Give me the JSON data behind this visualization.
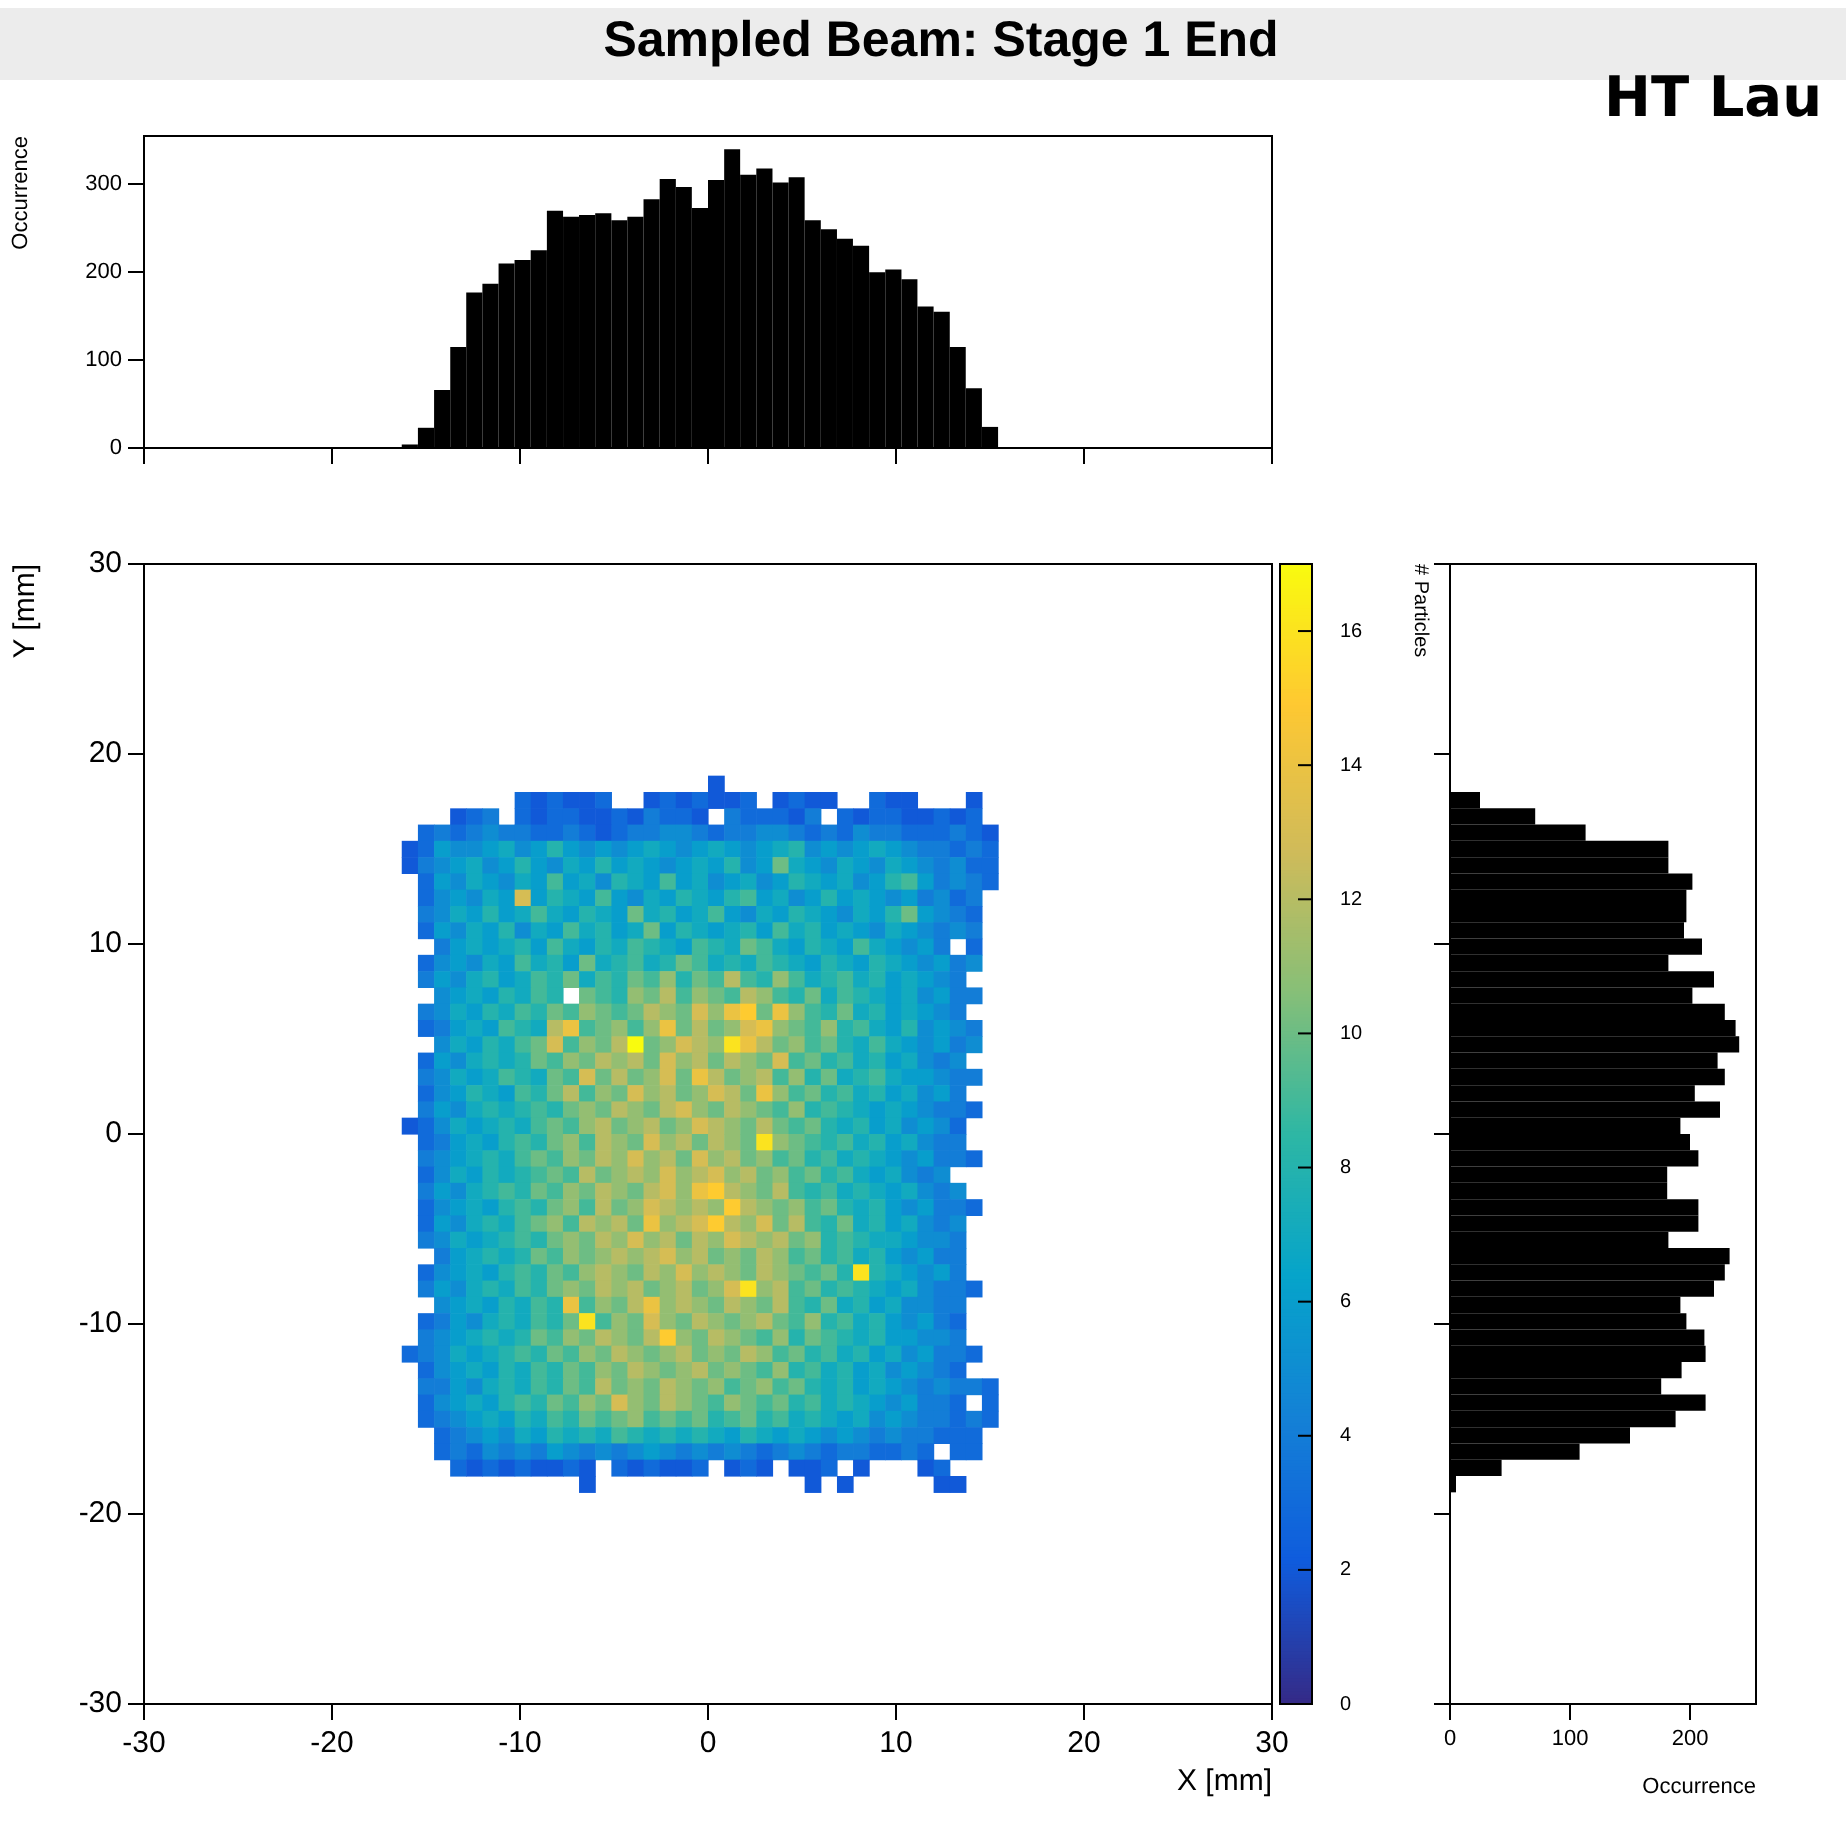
{
  "chart_data": [
    {
      "type": "histogram",
      "title": "Sampled Beam: Stage 1 End",
      "annotations": [
        "HT Lau"
      ],
      "ylabel": "Occurrence",
      "color": "#000000",
      "tick_labels": "y",
      "xlim": [
        -30,
        30
      ],
      "ylim": [
        0,
        355
      ],
      "xticks": [
        -30,
        -20,
        -10,
        0,
        10,
        20,
        30
      ],
      "yticks": [
        0,
        100,
        200,
        300
      ],
      "bins": [
        -16.29,
        -15.43,
        -14.57,
        -13.71,
        -12.86,
        -12.0,
        -11.14,
        -10.29,
        -9.43,
        -8.57,
        -7.71,
        -6.86,
        -6.0,
        -5.14,
        -4.29,
        -3.43,
        -2.57,
        -1.71,
        -0.86,
        0,
        0.86,
        1.71,
        2.57,
        3.43,
        4.29,
        5.14,
        6.0,
        6.86,
        7.71,
        8.57,
        9.43,
        10.29,
        11.14,
        12.0,
        12.86,
        13.71,
        14.57,
        15.43
      ],
      "values": [
        4,
        23,
        66,
        115,
        177,
        187,
        210,
        214,
        225,
        270,
        263,
        265,
        267,
        259,
        263,
        283,
        306,
        297,
        273,
        305,
        340,
        311,
        318,
        302,
        308,
        259,
        249,
        238,
        230,
        200,
        203,
        192,
        161,
        155,
        115,
        68,
        24
      ]
    },
    {
      "type": "heatmap",
      "xlabel": "X [mm]",
      "ylabel": "Y [mm]",
      "clabel": "# Particles",
      "xlim": [
        -30,
        30
      ],
      "ylim": [
        -30,
        30
      ],
      "xticks": [
        -30,
        -20,
        -10,
        0,
        10,
        20,
        30
      ],
      "yticks": [
        -30,
        -20,
        -10,
        0,
        10,
        20,
        30
      ],
      "clim": [
        0,
        17
      ],
      "cticks": [
        0,
        2,
        4,
        6,
        8,
        10,
        12,
        14,
        16
      ],
      "x": [
        -15.86,
        -15.0,
        -14.14,
        -13.29,
        -12.43,
        -11.57,
        -10.71,
        -9.86,
        -9.0,
        -8.14,
        -7.29,
        -6.43,
        -5.57,
        -4.71,
        -3.86,
        -3.0,
        -2.14,
        -1.29,
        -0.43,
        0.43,
        1.29,
        2.14,
        3.0,
        3.86,
        4.71,
        5.57,
        6.43,
        7.29,
        8.14,
        9.0,
        9.86,
        10.71,
        11.57,
        12.43,
        13.29,
        14.14,
        15.0
      ],
      "y": [
        18.43,
        17.57,
        16.71,
        15.86,
        15.0,
        14.14,
        13.29,
        12.43,
        11.57,
        10.71,
        9.86,
        9.0,
        8.14,
        7.29,
        6.43,
        5.57,
        4.71,
        3.86,
        3.0,
        2.14,
        1.29,
        0.43,
        -0.43,
        -1.29,
        -2.14,
        -3.0,
        -3.86,
        -4.71,
        -5.57,
        -6.43,
        -7.29,
        -8.14,
        -9.0,
        -9.86,
        -10.71,
        -11.57,
        -12.43,
        -13.29,
        -14.14,
        -15.0,
        -15.86,
        -16.71,
        -17.57,
        -18.43
      ],
      "cells": [
        [
          null,
          null,
          null,
          null,
          null,
          null,
          null,
          null,
          null,
          null,
          null,
          null,
          null,
          null,
          null,
          null,
          null,
          null,
          null,
          2,
          null,
          null,
          null,
          null,
          null,
          null,
          null,
          null,
          null,
          null,
          null,
          null,
          null,
          null,
          null,
          null,
          null
        ],
        [
          null,
          null,
          null,
          null,
          null,
          null,
          null,
          3,
          2,
          3,
          2,
          2,
          3,
          null,
          null,
          2,
          3,
          2,
          3,
          2,
          2,
          3,
          null,
          2,
          3,
          2,
          2,
          null,
          null,
          3,
          2,
          2,
          null,
          null,
          null,
          2,
          null
        ],
        [
          null,
          null,
          null,
          2,
          3,
          4,
          null,
          3,
          2,
          3,
          3,
          2,
          2,
          3,
          2,
          4,
          3,
          3,
          2,
          null,
          4,
          3,
          3,
          3,
          2,
          4,
          null,
          3,
          2,
          3,
          3,
          2,
          2,
          3,
          2,
          3,
          null
        ],
        [
          null,
          3,
          4,
          3,
          4,
          5,
          4,
          4,
          3,
          3,
          4,
          3,
          2,
          3,
          4,
          4,
          5,
          5,
          4,
          3,
          4,
          4,
          5,
          5,
          4,
          3,
          4,
          3,
          5,
          4,
          4,
          3,
          3,
          3,
          4,
          3,
          2
        ],
        [
          2,
          3,
          6,
          5,
          5,
          6,
          7,
          5,
          6,
          8,
          6,
          5,
          6,
          5,
          6,
          7,
          6,
          5,
          6,
          7,
          6,
          5,
          6,
          7,
          8,
          5,
          6,
          5,
          6,
          7,
          6,
          5,
          4,
          4,
          3,
          4,
          3
        ],
        [
          2,
          4,
          5,
          6,
          7,
          5,
          6,
          8,
          6,
          5,
          7,
          6,
          8,
          6,
          7,
          6,
          5,
          6,
          7,
          6,
          8,
          5,
          6,
          10,
          7,
          6,
          5,
          7,
          6,
          5,
          7,
          6,
          5,
          4,
          5,
          3,
          3
        ],
        [
          null,
          3,
          6,
          5,
          7,
          6,
          5,
          7,
          6,
          9,
          6,
          7,
          5,
          8,
          7,
          6,
          9,
          6,
          7,
          5,
          6,
          7,
          5,
          6,
          8,
          7,
          6,
          7,
          5,
          6,
          8,
          9,
          6,
          4,
          5,
          4,
          3
        ],
        [
          null,
          3,
          5,
          6,
          5,
          7,
          6,
          13,
          6,
          8,
          7,
          6,
          9,
          6,
          5,
          7,
          6,
          8,
          7,
          6,
          8,
          9,
          6,
          7,
          5,
          6,
          8,
          6,
          7,
          6,
          5,
          6,
          4,
          5,
          3,
          4,
          null
        ],
        [
          null,
          4,
          5,
          7,
          6,
          8,
          6,
          7,
          9,
          7,
          6,
          8,
          7,
          6,
          10,
          7,
          8,
          6,
          7,
          9,
          6,
          5,
          7,
          6,
          8,
          7,
          6,
          5,
          7,
          6,
          8,
          10,
          6,
          5,
          4,
          3,
          null
        ],
        [
          null,
          3,
          6,
          5,
          7,
          6,
          8,
          5,
          7,
          6,
          9,
          7,
          8,
          6,
          7,
          10,
          6,
          8,
          7,
          6,
          7,
          8,
          6,
          9,
          7,
          8,
          6,
          7,
          6,
          5,
          7,
          6,
          5,
          4,
          5,
          4,
          null
        ],
        [
          null,
          null,
          4,
          6,
          7,
          6,
          7,
          8,
          6,
          9,
          7,
          6,
          8,
          7,
          9,
          8,
          7,
          6,
          9,
          8,
          7,
          10,
          9,
          7,
          6,
          8,
          7,
          6,
          9,
          7,
          6,
          5,
          6,
          4,
          null,
          3,
          null
        ],
        [
          null,
          3,
          5,
          6,
          5,
          7,
          6,
          9,
          7,
          8,
          6,
          10,
          7,
          8,
          9,
          7,
          8,
          10,
          9,
          7,
          8,
          7,
          9,
          8,
          7,
          6,
          8,
          7,
          6,
          8,
          7,
          6,
          5,
          6,
          4,
          5,
          null
        ],
        [
          null,
          4,
          6,
          5,
          7,
          8,
          6,
          7,
          9,
          8,
          10,
          7,
          9,
          8,
          10,
          9,
          11,
          8,
          10,
          9,
          12,
          9,
          8,
          11,
          9,
          7,
          8,
          9,
          7,
          8,
          6,
          7,
          6,
          5,
          4,
          null,
          null
        ],
        [
          null,
          null,
          5,
          6,
          7,
          6,
          8,
          7,
          9,
          8,
          null,
          10,
          9,
          8,
          11,
          10,
          12,
          9,
          11,
          10,
          9,
          12,
          11,
          9,
          8,
          10,
          7,
          9,
          8,
          7,
          6,
          7,
          5,
          6,
          4,
          4,
          null
        ],
        [
          null,
          4,
          5,
          7,
          6,
          8,
          7,
          9,
          8,
          10,
          9,
          11,
          10,
          9,
          10,
          12,
          11,
          10,
          13,
          11,
          14,
          15,
          10,
          14,
          11,
          9,
          8,
          10,
          7,
          8,
          6,
          7,
          6,
          5,
          4,
          null,
          null
        ],
        [
          null,
          3,
          4,
          6,
          7,
          6,
          9,
          8,
          7,
          12,
          14,
          9,
          10,
          11,
          9,
          11,
          14,
          10,
          12,
          10,
          11,
          13,
          14,
          11,
          10,
          9,
          11,
          8,
          9,
          7,
          6,
          8,
          5,
          6,
          5,
          4,
          null
        ],
        [
          null,
          null,
          5,
          7,
          6,
          8,
          7,
          9,
          10,
          13,
          9,
          11,
          10,
          12,
          17,
          10,
          11,
          13,
          12,
          11,
          16,
          14,
          12,
          10,
          11,
          9,
          10,
          8,
          7,
          9,
          7,
          6,
          5,
          6,
          4,
          5,
          null
        ],
        [
          null,
          3,
          6,
          5,
          7,
          8,
          7,
          8,
          10,
          9,
          11,
          10,
          12,
          11,
          12,
          10,
          13,
          11,
          12,
          10,
          12,
          11,
          10,
          13,
          9,
          10,
          8,
          9,
          7,
          8,
          6,
          7,
          5,
          4,
          5,
          null,
          null
        ],
        [
          null,
          4,
          5,
          7,
          6,
          7,
          9,
          8,
          7,
          10,
          9,
          13,
          10,
          12,
          10,
          11,
          13,
          10,
          14,
          12,
          10,
          11,
          12,
          9,
          11,
          8,
          10,
          7,
          8,
          9,
          7,
          6,
          6,
          5,
          4,
          4,
          null
        ],
        [
          null,
          3,
          5,
          6,
          8,
          7,
          6,
          9,
          8,
          10,
          12,
          9,
          11,
          10,
          13,
          11,
          12,
          10,
          11,
          13,
          12,
          10,
          14,
          11,
          9,
          10,
          8,
          9,
          7,
          8,
          6,
          7,
          5,
          6,
          4,
          null,
          null
        ],
        [
          null,
          4,
          6,
          5,
          7,
          8,
          7,
          8,
          9,
          8,
          10,
          11,
          10,
          12,
          11,
          10,
          12,
          13,
          11,
          10,
          12,
          11,
          10,
          9,
          11,
          8,
          9,
          8,
          7,
          6,
          7,
          6,
          5,
          4,
          4,
          3,
          null
        ],
        [
          2,
          3,
          5,
          7,
          6,
          7,
          8,
          7,
          9,
          10,
          9,
          11,
          12,
          10,
          11,
          12,
          10,
          11,
          13,
          12,
          11,
          10,
          12,
          10,
          9,
          10,
          8,
          7,
          8,
          6,
          7,
          5,
          6,
          5,
          3,
          null,
          null
        ],
        [
          null,
          3,
          4,
          6,
          7,
          6,
          8,
          9,
          8,
          10,
          11,
          9,
          12,
          11,
          10,
          13,
          11,
          12,
          10,
          12,
          11,
          10,
          16,
          11,
          10,
          9,
          8,
          9,
          7,
          8,
          6,
          7,
          5,
          4,
          4,
          null,
          null
        ],
        [
          null,
          4,
          5,
          6,
          7,
          8,
          7,
          9,
          10,
          9,
          11,
          10,
          12,
          11,
          13,
          11,
          12,
          10,
          13,
          11,
          12,
          10,
          11,
          9,
          10,
          8,
          9,
          7,
          8,
          7,
          6,
          5,
          6,
          4,
          4,
          3,
          null
        ],
        [
          null,
          3,
          5,
          7,
          6,
          8,
          7,
          8,
          9,
          10,
          9,
          12,
          10,
          11,
          12,
          11,
          13,
          11,
          12,
          13,
          11,
          12,
          10,
          11,
          9,
          10,
          8,
          9,
          7,
          6,
          7,
          5,
          4,
          5,
          null,
          null,
          null
        ],
        [
          null,
          4,
          6,
          5,
          7,
          8,
          9,
          8,
          10,
          9,
          11,
          10,
          12,
          11,
          10,
          12,
          13,
          11,
          14,
          15,
          12,
          11,
          10,
          12,
          9,
          8,
          9,
          7,
          8,
          7,
          6,
          7,
          5,
          4,
          5,
          null,
          null
        ],
        [
          null,
          3,
          5,
          6,
          7,
          6,
          8,
          9,
          8,
          10,
          11,
          9,
          12,
          10,
          11,
          13,
          12,
          11,
          12,
          11,
          15,
          12,
          11,
          10,
          11,
          9,
          10,
          8,
          7,
          8,
          6,
          5,
          6,
          4,
          4,
          3,
          null
        ],
        [
          null,
          3,
          6,
          5,
          7,
          8,
          7,
          9,
          10,
          11,
          9,
          12,
          11,
          12,
          10,
          14,
          11,
          12,
          13,
          15,
          12,
          11,
          13,
          10,
          12,
          9,
          8,
          10,
          7,
          8,
          6,
          7,
          5,
          4,
          5,
          null,
          null
        ],
        [
          null,
          4,
          5,
          7,
          6,
          7,
          8,
          9,
          8,
          10,
          11,
          10,
          12,
          11,
          13,
          11,
          12,
          10,
          12,
          11,
          13,
          12,
          11,
          12,
          10,
          11,
          8,
          9,
          8,
          7,
          7,
          6,
          5,
          5,
          4,
          null,
          null
        ],
        [
          null,
          null,
          4,
          6,
          7,
          8,
          7,
          8,
          10,
          9,
          11,
          10,
          11,
          12,
          11,
          12,
          13,
          11,
          12,
          10,
          11,
          10,
          12,
          11,
          9,
          10,
          8,
          9,
          7,
          8,
          6,
          5,
          6,
          4,
          4,
          null,
          null
        ],
        [
          null,
          3,
          5,
          6,
          7,
          6,
          8,
          9,
          8,
          10,
          9,
          11,
          12,
          11,
          10,
          12,
          11,
          13,
          11,
          12,
          11,
          10,
          12,
          11,
          10,
          9,
          10,
          8,
          16,
          8,
          7,
          6,
          5,
          6,
          4,
          null,
          null
        ],
        [
          null,
          4,
          6,
          5,
          7,
          8,
          7,
          9,
          8,
          10,
          11,
          10,
          12,
          11,
          12,
          10,
          11,
          12,
          10,
          11,
          13,
          16,
          11,
          12,
          9,
          10,
          8,
          9,
          8,
          7,
          6,
          7,
          5,
          4,
          4,
          3,
          null
        ],
        [
          null,
          null,
          5,
          6,
          7,
          6,
          8,
          7,
          9,
          8,
          14,
          9,
          11,
          10,
          12,
          14,
          11,
          12,
          11,
          10,
          12,
          11,
          10,
          12,
          9,
          8,
          10,
          7,
          8,
          6,
          7,
          5,
          5,
          4,
          4,
          null,
          null
        ],
        [
          null,
          3,
          4,
          6,
          5,
          7,
          8,
          7,
          9,
          8,
          10,
          16,
          9,
          11,
          10,
          13,
          11,
          10,
          12,
          11,
          10,
          11,
          12,
          10,
          9,
          11,
          8,
          9,
          7,
          8,
          6,
          5,
          6,
          4,
          3,
          null,
          null
        ],
        [
          null,
          4,
          5,
          6,
          7,
          8,
          7,
          8,
          10,
          9,
          11,
          10,
          12,
          11,
          10,
          12,
          15,
          11,
          10,
          12,
          11,
          10,
          9,
          11,
          8,
          10,
          9,
          8,
          7,
          8,
          6,
          6,
          5,
          5,
          4,
          null,
          null
        ],
        [
          3,
          4,
          5,
          7,
          6,
          7,
          8,
          9,
          8,
          10,
          9,
          11,
          10,
          12,
          11,
          10,
          11,
          12,
          10,
          11,
          10,
          12,
          11,
          9,
          10,
          8,
          9,
          7,
          8,
          6,
          7,
          5,
          6,
          4,
          4,
          3,
          null
        ],
        [
          null,
          3,
          5,
          6,
          7,
          6,
          8,
          7,
          9,
          8,
          10,
          9,
          11,
          10,
          12,
          11,
          10,
          11,
          12,
          10,
          11,
          10,
          9,
          11,
          8,
          9,
          7,
          8,
          6,
          7,
          5,
          6,
          5,
          4,
          3,
          null,
          null
        ],
        [
          null,
          4,
          4,
          6,
          5,
          7,
          8,
          7,
          9,
          8,
          10,
          9,
          12,
          10,
          11,
          10,
          12,
          11,
          10,
          11,
          9,
          10,
          11,
          9,
          10,
          8,
          7,
          8,
          6,
          7,
          6,
          5,
          4,
          5,
          4,
          4,
          3
        ],
        [
          null,
          3,
          5,
          6,
          7,
          6,
          8,
          9,
          8,
          10,
          9,
          11,
          10,
          13,
          11,
          10,
          12,
          11,
          10,
          9,
          11,
          10,
          9,
          10,
          8,
          9,
          7,
          8,
          7,
          6,
          5,
          6,
          4,
          4,
          3,
          null,
          3
        ],
        [
          null,
          3,
          4,
          5,
          6,
          7,
          6,
          8,
          7,
          9,
          8,
          10,
          9,
          10,
          11,
          9,
          10,
          9,
          10,
          8,
          9,
          10,
          8,
          9,
          7,
          8,
          7,
          6,
          7,
          5,
          6,
          5,
          4,
          4,
          3,
          4,
          3
        ],
        [
          null,
          null,
          3,
          4,
          5,
          6,
          5,
          7,
          6,
          8,
          7,
          8,
          7,
          9,
          8,
          7,
          8,
          7,
          8,
          7,
          6,
          8,
          7,
          6,
          7,
          6,
          5,
          6,
          5,
          4,
          5,
          4,
          4,
          3,
          3,
          3,
          null
        ],
        [
          null,
          null,
          3,
          4,
          3,
          5,
          4,
          5,
          4,
          6,
          5,
          4,
          5,
          4,
          5,
          6,
          5,
          4,
          5,
          4,
          5,
          4,
          3,
          4,
          5,
          4,
          3,
          4,
          4,
          3,
          3,
          4,
          3,
          null,
          3,
          3,
          null
        ],
        [
          null,
          null,
          null,
          3,
          2,
          3,
          2,
          3,
          2,
          2,
          3,
          2,
          null,
          3,
          2,
          3,
          2,
          2,
          3,
          null,
          2,
          3,
          2,
          null,
          2,
          2,
          3,
          null,
          2,
          null,
          null,
          null,
          2,
          3,
          null,
          null,
          null
        ],
        [
          null,
          null,
          null,
          null,
          null,
          null,
          null,
          null,
          null,
          null,
          null,
          2,
          null,
          null,
          null,
          null,
          null,
          null,
          null,
          null,
          null,
          null,
          null,
          null,
          null,
          2,
          null,
          2,
          null,
          null,
          null,
          null,
          null,
          2,
          2,
          null,
          null
        ]
      ]
    },
    {
      "type": "histogram",
      "orientation": "horizontal",
      "xlabel": "Occurrence",
      "color": "#000000",
      "tick_labels": "x",
      "xlim": [
        0,
        255
      ],
      "xticks": [
        0,
        100,
        200
      ],
      "ylim": [
        -30,
        30
      ],
      "yticks": [
        -30,
        -20,
        -10,
        0,
        10,
        20,
        30
      ],
      "bins": [
        -18.86,
        -18.0,
        -17.14,
        -16.29,
        -15.43,
        -14.57,
        -13.71,
        -12.86,
        -12.0,
        -11.14,
        -10.29,
        -9.43,
        -8.57,
        -7.71,
        -6.86,
        -6.0,
        -5.14,
        -4.29,
        -3.43,
        -2.57,
        -1.71,
        -0.86,
        0,
        0.86,
        1.71,
        2.57,
        3.43,
        4.29,
        5.14,
        6.0,
        6.86,
        7.71,
        8.57,
        9.43,
        10.29,
        11.14,
        12.0,
        12.86,
        13.71,
        14.57,
        15.43,
        16.29,
        17.14,
        18.0
      ],
      "values": [
        5,
        43,
        108,
        150,
        188,
        213,
        176,
        193,
        213,
        212,
        197,
        192,
        220,
        229,
        233,
        182,
        207,
        207,
        181,
        181,
        207,
        200,
        192,
        225,
        204,
        229,
        223,
        241,
        238,
        229,
        202,
        220,
        182,
        210,
        195,
        197,
        197,
        202,
        182,
        182,
        113,
        71,
        25
      ]
    }
  ]
}
